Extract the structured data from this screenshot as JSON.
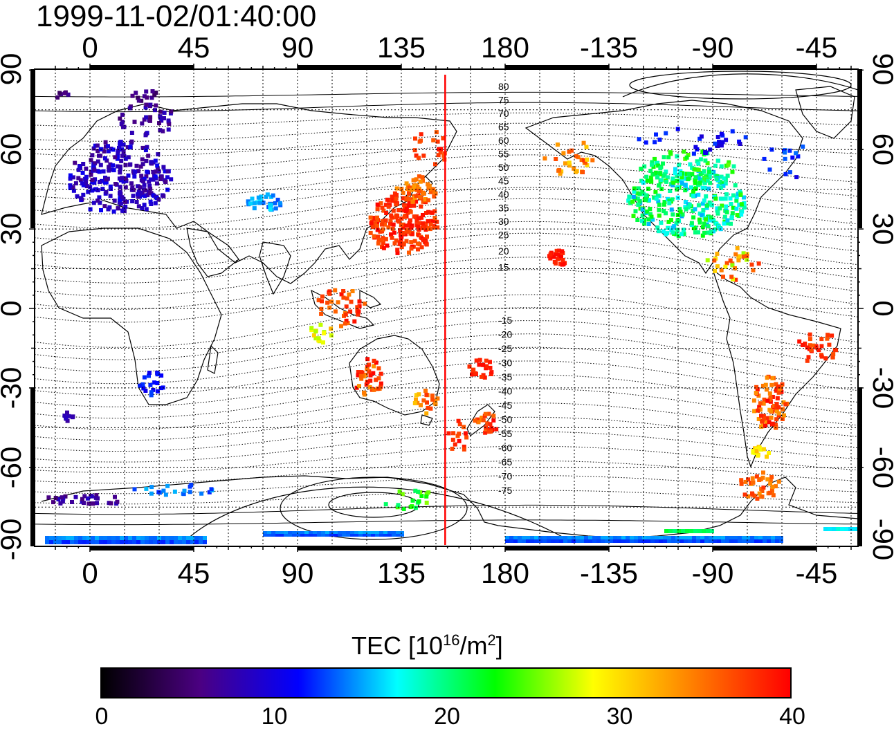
{
  "title": "1999-11-02/01:40:00",
  "map": {
    "lon_ticks_top": [
      "0",
      "45",
      "90",
      "135",
      "180",
      "-135",
      "-90",
      "-45"
    ],
    "lon_ticks_bottom": [
      "0",
      "45",
      "90",
      "135",
      "180",
      "-135",
      "-90",
      "-45"
    ],
    "lat_ticks_left": [
      "90",
      "60",
      "30",
      "0",
      "-30",
      "-60",
      "-90"
    ],
    "lat_ticks_right": [
      "90",
      "60",
      "30",
      "0",
      "-30",
      "-60",
      "-90"
    ],
    "contour_labels_north": [
      "80",
      "75",
      "70",
      "65",
      "60",
      "55",
      "50",
      "45",
      "40",
      "35",
      "30",
      "25",
      "20",
      "15"
    ],
    "contour_labels_south": [
      "-15",
      "-20",
      "-25",
      "-30",
      "-35",
      "-40",
      "-45",
      "-50",
      "-55",
      "-60",
      "-65",
      "-70",
      "-75"
    ],
    "marker_line_lon": 154,
    "marker_line_color": "#ff0000"
  },
  "colorbar": {
    "title_main": "TEC  [10",
    "title_exp": "16",
    "title_mid": "/m",
    "title_exp2": "2",
    "title_end": "]",
    "ticks": [
      "0",
      "10",
      "20",
      "30",
      "40"
    ],
    "range": [
      0,
      40
    ],
    "colors": [
      "#000000",
      "#4b0082",
      "#0000ff",
      "#00ffff",
      "#00ff00",
      "#ffff00",
      "#ff8000",
      "#ff0000"
    ]
  }
}
